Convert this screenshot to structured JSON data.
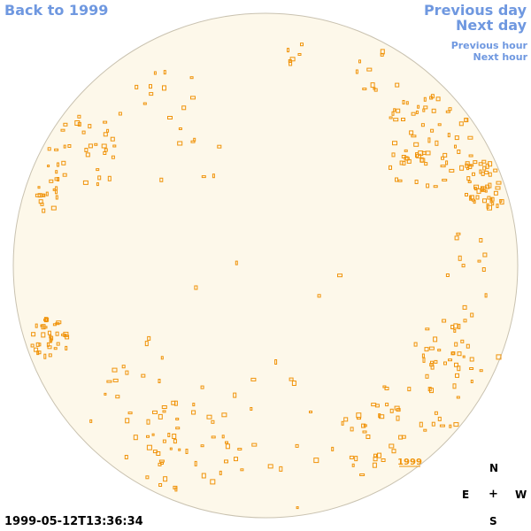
{
  "nav": {
    "back_label": "Back to 1999",
    "prev_day_label": "Previous day",
    "next_day_label": "Next day",
    "prev_hour_label": "Previous hour",
    "next_hour_label": "Next hour"
  },
  "map": {
    "year_marker_label": "1999",
    "disk_color": "#fdf8ea",
    "disk_border_color": "#c9c2b0",
    "mark_color": "#f0930a"
  },
  "compass": {
    "north": "N",
    "east": "E",
    "west": "W",
    "south": "S",
    "center": "+"
  },
  "timestamp": "1999-05-12T13:36:34"
}
